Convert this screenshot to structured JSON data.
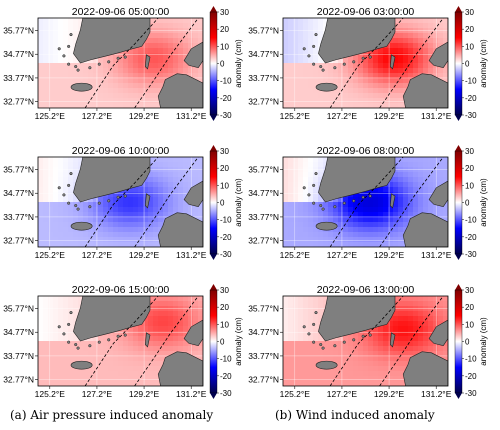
{
  "figure": {
    "captions": [
      "(a) Air pressure induced anomaly",
      "(b) Wind induced anomaly"
    ]
  },
  "chart_data": [
    {
      "type": "heatmap",
      "title": "2022-09-06 05:00:00",
      "column": "a",
      "lat_ticks": [
        "35.77°N",
        "34.77°N",
        "33.77°N",
        "32.77°N"
      ],
      "lon_ticks": [
        "125.2°E",
        "127.2°E",
        "129.2°E",
        "131.2°E"
      ],
      "colorbar": {
        "label": "anomaly (cm)",
        "ticks": [
          30,
          20,
          10,
          0,
          -10,
          -20,
          -30
        ],
        "range": [
          -30,
          30
        ]
      },
      "field": {
        "center_lon": 129.6,
        "center_lat": 34.6,
        "peak_cm": 10,
        "background_cm": 3,
        "west_cm": -1
      }
    },
    {
      "type": "heatmap",
      "title": "2022-09-06 03:00:00",
      "column": "b",
      "lat_ticks": [
        "35.77°N",
        "34.77°N",
        "33.77°N",
        "32.77°N"
      ],
      "lon_ticks": [
        "125.2°E",
        "127.2°E",
        "129.2°E",
        "131.2°E"
      ],
      "colorbar": {
        "label": "anomaly (cm)",
        "ticks": [
          30,
          20,
          10,
          0,
          -10,
          -20,
          -30
        ],
        "range": [
          -30,
          30
        ]
      },
      "field": {
        "center_lon": 129.4,
        "center_lat": 34.6,
        "peak_cm": 15,
        "background_cm": 3,
        "west_cm": -3
      }
    },
    {
      "type": "heatmap",
      "title": "2022-09-06 10:00:00",
      "column": "a",
      "lat_ticks": [
        "35.77°N",
        "34.77°N",
        "33.77°N",
        "32.77°N"
      ],
      "lon_ticks": [
        "125.2°E",
        "127.2°E",
        "129.2°E",
        "131.2°E"
      ],
      "colorbar": {
        "label": "anomaly (cm)",
        "ticks": [
          30,
          20,
          10,
          0,
          -10,
          -20,
          -30
        ],
        "range": [
          -30,
          30
        ]
      },
      "field": {
        "center_lon": 128.6,
        "center_lat": 34.4,
        "peak_cm": -12,
        "background_cm": -4,
        "west_cm": 1
      }
    },
    {
      "type": "heatmap",
      "title": "2022-09-06 08:00:00",
      "column": "b",
      "lat_ticks": [
        "35.77°N",
        "34.77°N",
        "33.77°N",
        "32.77°N"
      ],
      "lon_ticks": [
        "125.2°E",
        "127.2°E",
        "129.2°E",
        "131.2°E"
      ],
      "colorbar": {
        "label": "anomaly (cm)",
        "ticks": [
          30,
          20,
          10,
          0,
          -10,
          -20,
          -30
        ],
        "range": [
          -30,
          30
        ]
      },
      "field": {
        "center_lon": 128.4,
        "center_lat": 34.4,
        "peak_cm": -18,
        "background_cm": -5,
        "west_cm": 2
      }
    },
    {
      "type": "heatmap",
      "title": "2022-09-06 15:00:00",
      "column": "a",
      "lat_ticks": [
        "35.77°N",
        "34.77°N",
        "33.77°N",
        "32.77°N"
      ],
      "lon_ticks": [
        "125.2°E",
        "127.2°E",
        "129.2°E",
        "131.2°E"
      ],
      "colorbar": {
        "label": "anomaly (cm)",
        "ticks": [
          30,
          20,
          10,
          0,
          -10,
          -20,
          -30
        ],
        "range": [
          -30,
          30
        ]
      },
      "field": {
        "center_lon": 130.0,
        "center_lat": 35.2,
        "peak_cm": 11,
        "background_cm": 4,
        "west_cm": 0
      }
    },
    {
      "type": "heatmap",
      "title": "2022-09-06 13:00:00",
      "column": "b",
      "lat_ticks": [
        "35.77°N",
        "34.77°N",
        "33.77°N",
        "32.77°N"
      ],
      "lon_ticks": [
        "125.2°E",
        "127.2°E",
        "129.2°E",
        "131.2°E"
      ],
      "colorbar": {
        "label": "anomaly (cm)",
        "ticks": [
          30,
          20,
          10,
          0,
          -10,
          -20,
          -30
        ],
        "range": [
          -30,
          30
        ]
      },
      "field": {
        "center_lon": 129.8,
        "center_lat": 34.9,
        "peak_cm": 14,
        "background_cm": 6,
        "west_cm": 1
      }
    }
  ]
}
